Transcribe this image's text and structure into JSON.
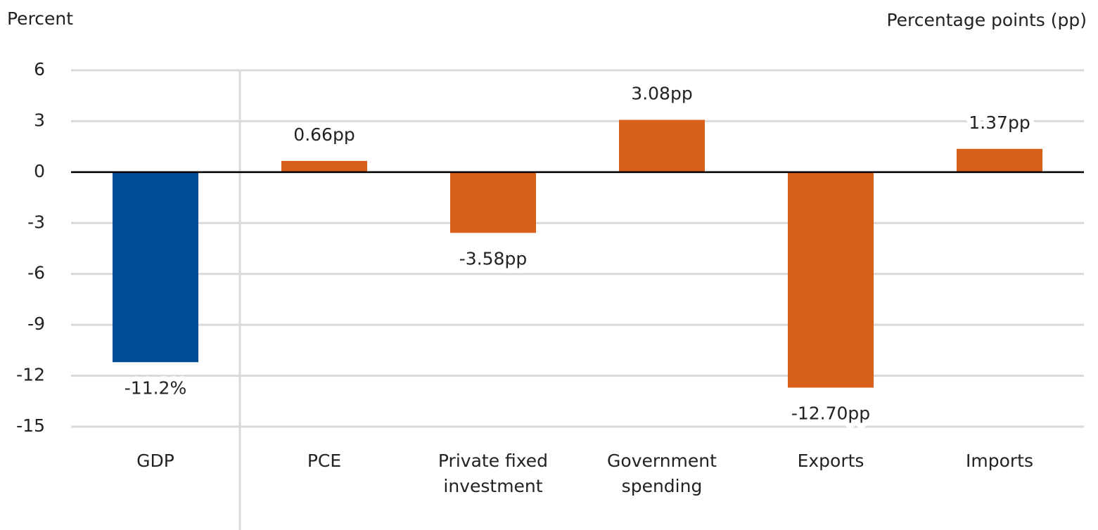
{
  "chart_data": {
    "type": "bar",
    "y_label": "Percent",
    "y2_label": "Percentage points (pp)",
    "categories": [
      "GDP",
      "PCE",
      "Private fixed investment",
      "Government spending",
      "Exports",
      "Imports"
    ],
    "values": [
      -11.2,
      0.66,
      -3.58,
      3.08,
      -12.7,
      1.37
    ],
    "value_labels": [
      "-11.2%",
      "0.66pp",
      "-3.58pp",
      "3.08pp",
      "-12.70pp",
      "1.37pp"
    ],
    "colors": [
      "#004c97",
      "#d9601a",
      "#d9601a",
      "#d9601a",
      "#d9601a",
      "#d9601a"
    ],
    "ylim": [
      -15,
      6
    ],
    "yticks": [
      6,
      3,
      0,
      -3,
      -6,
      -9,
      -12,
      -15
    ],
    "grid": true
  }
}
